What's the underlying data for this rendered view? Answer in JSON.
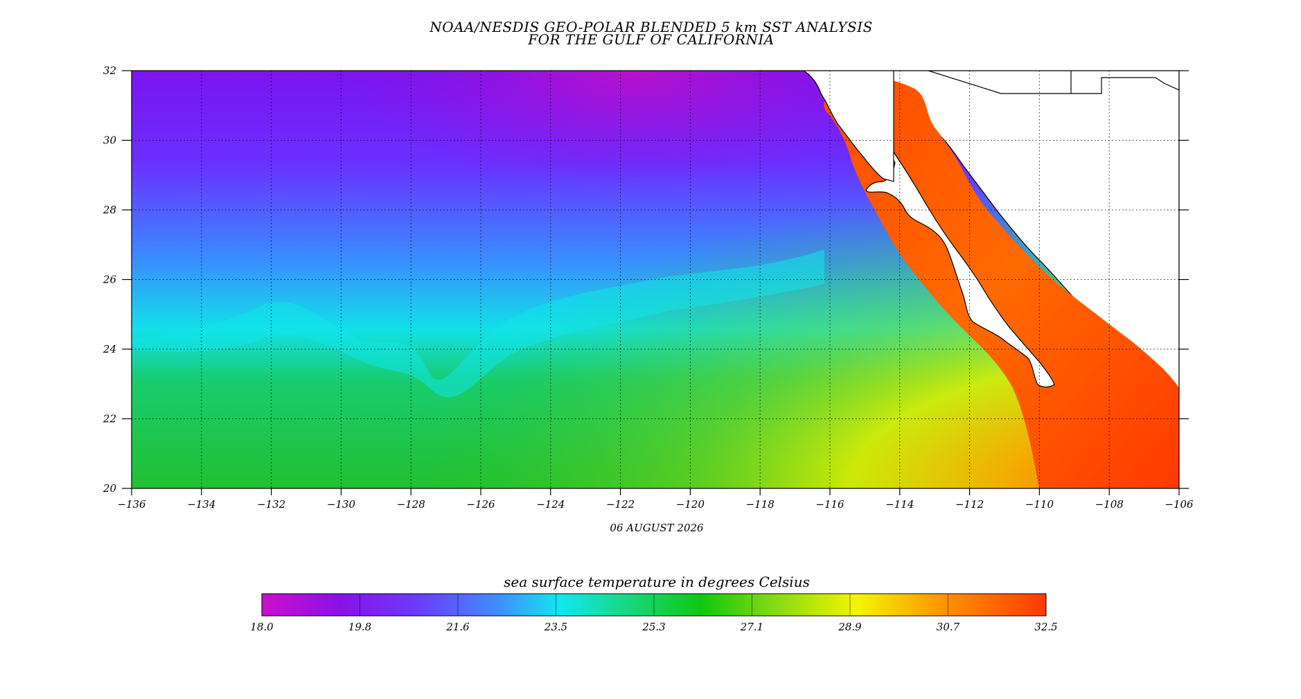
{
  "title": {
    "line1": "NOAA/NESDIS GEO-POLAR BLENDED 5 km SST ANALYSIS",
    "line2": "FOR THE GULF OF CALIFORNIA"
  },
  "date": "06 AUGUST 2026",
  "map": {
    "lon_range": [
      -136,
      -106
    ],
    "lat_range": [
      20,
      32
    ],
    "lon_ticks": [
      "−136",
      "−134",
      "−132",
      "−130",
      "−128",
      "−126",
      "−124",
      "−122",
      "−120",
      "−118",
      "−116",
      "−114",
      "−112",
      "−110",
      "−108",
      "−106"
    ],
    "lat_ticks": [
      "32",
      "30",
      "28",
      "26",
      "24",
      "22",
      "20"
    ],
    "grid": "dotted",
    "land_color": "#ffffff",
    "coast_color": "#000000"
  },
  "colorbar": {
    "title": "sea surface temperature in degrees Celsius",
    "labels": [
      "18.0",
      "19.8",
      "21.6",
      "23.5",
      "25.3",
      "27.1",
      "28.9",
      "30.7",
      "32.5"
    ],
    "range": [
      18.0,
      32.5
    ],
    "colors": [
      "#cc0fcc",
      "#8a10e8",
      "#6a3cff",
      "#3f8cff",
      "#10e8f0",
      "#17d87a",
      "#10c810",
      "#8cdc10",
      "#f5f500",
      "#ff9a00",
      "#ff3800"
    ]
  }
}
